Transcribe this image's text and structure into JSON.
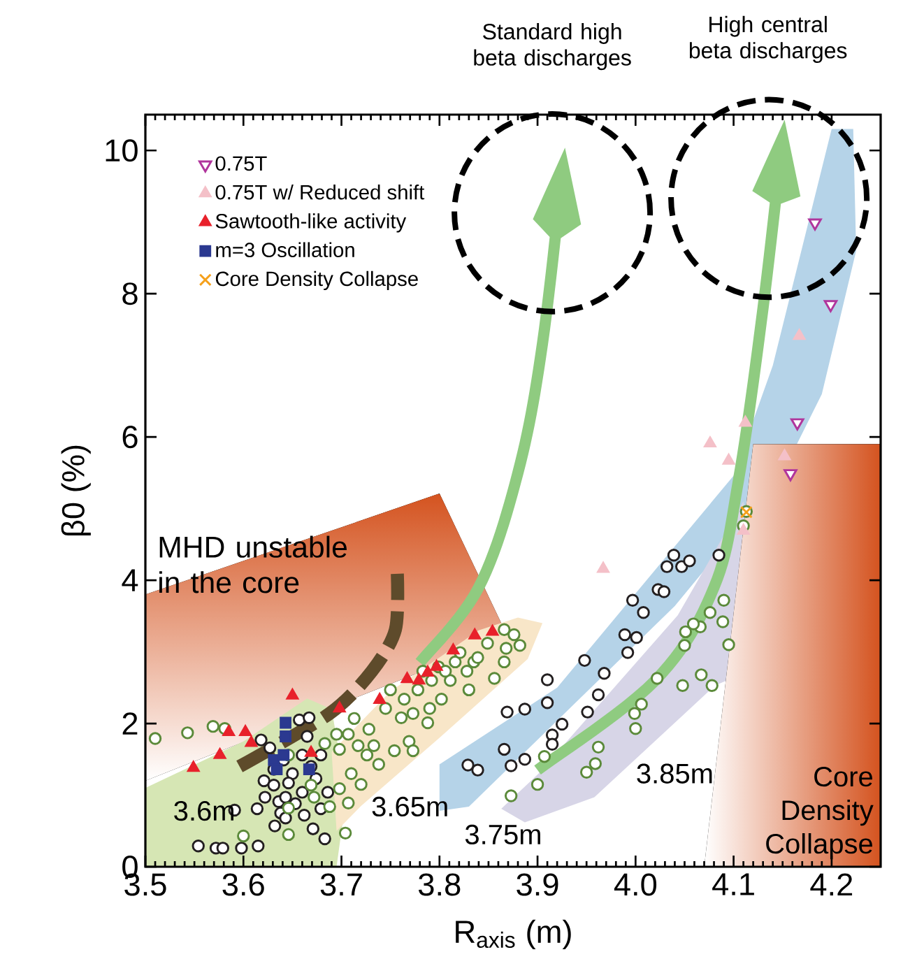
{
  "chart_data": {
    "type": "scatter",
    "xlabel": "R$_{axis}$  (m)",
    "ylabel": "β0 (%)",
    "xlim": [
      3.5,
      4.25
    ],
    "ylim": [
      0,
      10.5
    ],
    "xticks": [
      3.5,
      3.6,
      3.7,
      3.8,
      3.9,
      {
        "value": 4.0,
        "label": "4.0"
      },
      4.1,
      4.2
    ],
    "yticks": [
      0,
      2,
      4,
      6,
      8,
      10
    ],
    "legend": "top left",
    "series": [
      {
        "color": "#231f20",
        "marker": "circle",
        "x": [
          3.829,
          3.839,
          3.866,
          3.869,
          3.887,
          3.873,
          3.887,
          3.91,
          3.91,
          3.925,
          3.915,
          3.915,
          3.948,
          3.968,
          3.962,
          3.951,
          3.989,
          4.001,
          3.992,
          3.997,
          4.008,
          4.023,
          4.029,
          4.032,
          4.039,
          4.047,
          4.055,
          4.085,
          3.554,
          3.572,
          3.579,
          3.598,
          3.615,
          3.591,
          3.614,
          3.621,
          3.622,
          3.631,
          3.636,
          3.643,
          3.638,
          3.643,
          3.653,
          3.66,
          3.662,
          3.671,
          3.683,
          3.679,
          3.686,
          3.674,
          3.65,
          3.641,
          3.627,
          3.618,
          3.66,
          3.665,
          3.657,
          3.667,
          3.679,
          3.646,
          3.631,
          3.669,
          3.632
        ],
        "values": [
          1.42,
          1.35,
          1.64,
          2.16,
          2.2,
          1.41,
          1.5,
          2.61,
          2.29,
          1.99,
          1.84,
          1.71,
          2.88,
          2.7,
          2.4,
          2.16,
          3.24,
          3.2,
          2.99,
          3.72,
          3.55,
          3.87,
          3.84,
          4.19,
          4.35,
          4.19,
          4.27,
          4.35,
          0.29,
          0.26,
          0.26,
          0.26,
          0.29,
          0.79,
          0.81,
          1.2,
          0.97,
          1.14,
          0.91,
          0.97,
          0.75,
          0.68,
          0.88,
          1.04,
          0.72,
          0.53,
          0.39,
          0.81,
          1.04,
          1.23,
          1.3,
          1.49,
          1.66,
          1.77,
          1.56,
          1.82,
          2.05,
          2.08,
          1.56,
          1.17,
          1.36,
          1.4,
          0.57
        ]
      },
      {
        "color": "#5b8a3a",
        "marker": "circle",
        "x": [
          3.873,
          3.9,
          3.907,
          3.95,
          3.959,
          3.962,
          4.0,
          3.999,
          4.006,
          4.022,
          4.048,
          4.067,
          4.078,
          4.05,
          4.051,
          4.066,
          4.076,
          4.089,
          4.09,
          4.095,
          4.059,
          4.11,
          4.113,
          3.51,
          3.543,
          3.569,
          3.581,
          3.6,
          3.646,
          3.646,
          3.669,
          3.698,
          3.707,
          3.704,
          3.683,
          3.695,
          3.698,
          3.713,
          3.71,
          3.72,
          3.728,
          3.733,
          3.738,
          3.75,
          3.754,
          3.761,
          3.764,
          3.769,
          3.773,
          3.778,
          3.788,
          3.79,
          3.792,
          3.799,
          3.802,
          3.811,
          3.816,
          3.821,
          3.828,
          3.835,
          3.839,
          3.849,
          3.856,
          3.866,
          3.868,
          3.876,
          3.882,
          3.866,
          3.783,
          3.806,
          3.745,
          3.726,
          3.717,
          3.707,
          3.646,
          3.672,
          3.688,
          3.773,
          3.83
        ],
        "values": [
          0.99,
          1.15,
          1.54,
          1.32,
          1.44,
          1.67,
          1.93,
          2.14,
          2.27,
          2.63,
          2.53,
          2.68,
          2.53,
          3.09,
          3.28,
          3.35,
          3.55,
          3.42,
          3.72,
          3.1,
          3.39,
          4.76,
          4.96,
          1.79,
          1.87,
          1.96,
          1.93,
          0.43,
          0.45,
          0.82,
          1.14,
          1.09,
          0.89,
          0.47,
          1.72,
          1.85,
          1.64,
          2.07,
          1.3,
          1.15,
          1.92,
          1.69,
          1.43,
          2.47,
          1.62,
          2.08,
          2.34,
          1.75,
          2.14,
          2.47,
          2.01,
          2.21,
          2.6,
          2.79,
          2.34,
          2.6,
          2.86,
          2.99,
          2.73,
          2.86,
          2.92,
          3.12,
          2.63,
          3.31,
          3.05,
          3.24,
          3.09,
          2.86,
          2.73,
          2.73,
          2.21,
          1.56,
          1.69,
          1.85,
          1.56,
          0.97,
          0.84,
          1.62,
          2.47
        ]
      },
      {
        "name": "0.75T",
        "color": "#b0359c",
        "marker": "triangle-down",
        "x": [
          4.183,
          4.199,
          4.165,
          4.158
        ],
        "values": [
          8.99,
          7.85,
          6.2,
          5.49
        ]
      },
      {
        "name": "0.75T w/ Reduced shift",
        "color": "#f4c0c8",
        "marker": "triangle",
        "x": [
          4.076,
          4.095,
          4.112,
          4.152,
          4.167,
          3.967,
          4.11
        ],
        "values": [
          5.91,
          5.67,
          6.2,
          5.73,
          7.41,
          4.16,
          4.69
        ]
      },
      {
        "name": "Sawtooth-like activity",
        "color": "#e8212b",
        "marker": "triangle",
        "x": [
          3.549,
          3.576,
          3.585,
          3.602,
          3.608,
          3.65,
          3.698,
          3.739,
          3.767,
          3.779,
          3.788,
          3.797,
          3.814,
          3.836,
          3.854,
          3.669
        ],
        "values": [
          1.38,
          1.56,
          1.88,
          1.88,
          1.73,
          2.39,
          2.21,
          2.33,
          2.62,
          2.6,
          2.71,
          2.79,
          3.02,
          3.23,
          3.28,
          1.59
        ]
      },
      {
        "name": "m=3 Oscillation",
        "color": "#2b3990",
        "marker": "square",
        "x": [
          3.643,
          3.643,
          3.631,
          3.641,
          3.667,
          3.634
        ],
        "values": [
          2.01,
          1.82,
          1.49,
          1.56,
          1.36,
          1.36
        ]
      },
      {
        "name": "Core Density Collapse",
        "color": "#f5a01a",
        "marker": "cross",
        "x": [
          4.113
        ],
        "values": [
          4.95
        ]
      }
    ],
    "annotations": [
      "Standard high beta discharges",
      "High central beta discharges",
      "MHD unstable in the core",
      "3.6m",
      "3.65m",
      "3.75m",
      "3.85m",
      "Core Density Collapse"
    ]
  }
}
